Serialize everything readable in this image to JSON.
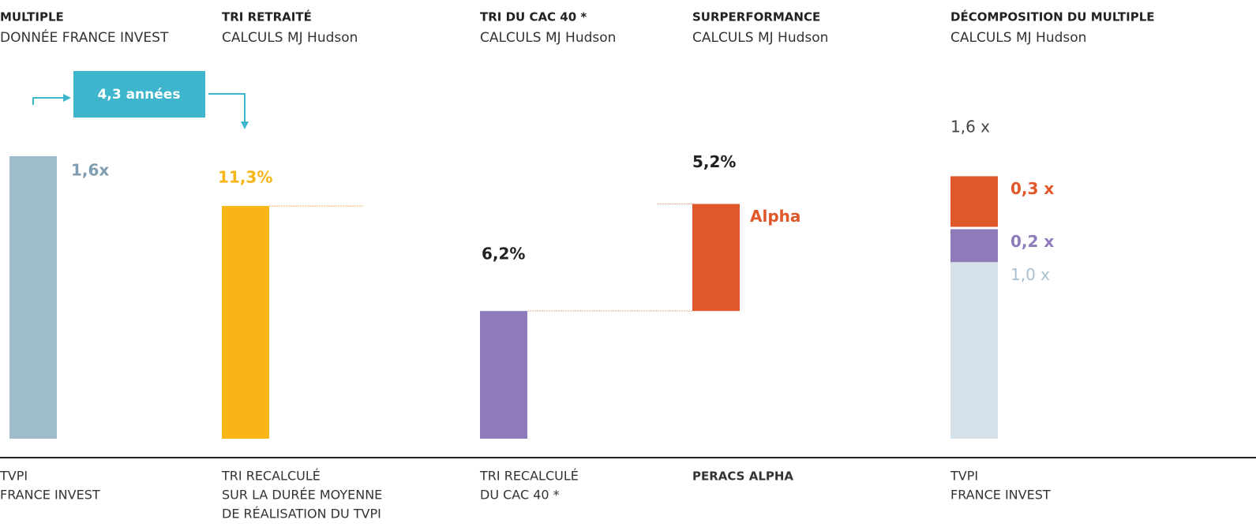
{
  "duration": "4,3 années",
  "chart_data": [
    {
      "type": "bar",
      "title": "MULTIPLE",
      "subtitle": "DONNÉE FRANCE INVEST",
      "value": 1.6,
      "value_label": "1,6x",
      "color": "#9fbccb",
      "label_color": "#7f9db0",
      "category": [
        "TVPI",
        "FRANCE INVEST"
      ]
    },
    {
      "type": "bar",
      "title": "TRI RETRAITÉ",
      "subtitle": "CALCULS MJ Hudson",
      "value": 11.3,
      "value_label": "11,3%",
      "color": "#f9b515",
      "label_color": "#f9b515",
      "category": [
        "TRI RECALCULÉ",
        "SUR LA DURÉE MOYENNE",
        "DE RÉALISATION DU TVPI"
      ]
    },
    {
      "type": "bar",
      "title": "TRI DU CAC 40 *",
      "subtitle": "CALCULS MJ Hudson",
      "value": 6.2,
      "value_label": "6,2%",
      "color": "#8e7bb9",
      "label_color": "#222222",
      "category": [
        "TRI RECALCULÉ",
        "DU CAC 40 *"
      ]
    },
    {
      "type": "waterfall",
      "title": "SURPERFORMANCE",
      "subtitle": "CALCULS MJ Hudson",
      "value": 5.2,
      "value_label": "5,2%",
      "annotation": "Alpha",
      "color": "#e0572a",
      "label_color": "#222222",
      "category": [
        "PERACS ALPHA"
      ]
    },
    {
      "type": "stacked",
      "title": "DÉCOMPOSITION DU MULTIPLE",
      "subtitle": "CALCULS MJ Hudson",
      "total": 1.6,
      "total_label": "1,6 x",
      "category": [
        "TVPI",
        "FRANCE INVEST"
      ],
      "segments": [
        {
          "value": 1.0,
          "label": "1,0 x",
          "color": "#d6e2ea",
          "label_color": "#a9c0d0"
        },
        {
          "value": 0.2,
          "label": "0,2 x",
          "color": "#8e7bb9",
          "label_color": "#8e7bb9"
        },
        {
          "value": 0.3,
          "label": "0,3 x",
          "color": "#e0572a",
          "label_color": "#e0572a"
        }
      ]
    }
  ]
}
